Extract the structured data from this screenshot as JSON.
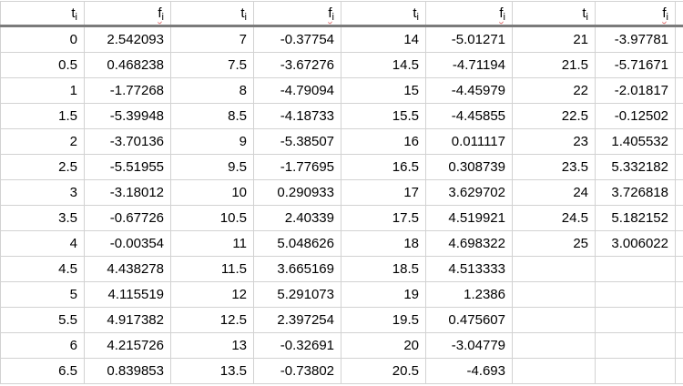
{
  "table": {
    "header": {
      "t_base": "t",
      "t_sub": "i",
      "f_base": "f",
      "f_sub": "i"
    },
    "layout": {
      "column_pairs": 4,
      "rows_per_column": 14
    }
  },
  "chart_data": {
    "type": "table",
    "columns": [
      "t_i",
      "f_i"
    ],
    "t": [
      0,
      0.5,
      1,
      1.5,
      2,
      2.5,
      3,
      3.5,
      4,
      4.5,
      5,
      5.5,
      6,
      6.5,
      7,
      7.5,
      8,
      8.5,
      9,
      9.5,
      10,
      10.5,
      11,
      11.5,
      12,
      12.5,
      13,
      13.5,
      14,
      14.5,
      15,
      15.5,
      16,
      16.5,
      17,
      17.5,
      18,
      18.5,
      19,
      19.5,
      20,
      20.5,
      21,
      21.5,
      22,
      22.5,
      23,
      23.5,
      24,
      24.5,
      25
    ],
    "f": [
      2.542093,
      0.468238,
      -1.77268,
      -5.39948,
      -3.70136,
      -5.51955,
      -3.18012,
      -0.67726,
      -0.00354,
      4.438278,
      4.115519,
      4.917382,
      4.215726,
      0.839853,
      -0.37754,
      -3.67276,
      -4.79094,
      -4.18733,
      -5.38507,
      -1.77695,
      0.290933,
      2.40339,
      5.048626,
      3.665169,
      5.291073,
      2.397254,
      -0.32691,
      -0.73802,
      -5.01271,
      -4.71194,
      -4.45979,
      -4.45855,
      0.011117,
      0.308739,
      3.629702,
      4.519921,
      4.698322,
      4.513333,
      1.2386,
      0.475607,
      -3.04779,
      -4.693,
      -3.97781,
      -5.71671,
      -2.01817,
      -0.12502,
      1.405532,
      5.332182,
      3.726818,
      5.182152,
      3.006022
    ]
  },
  "colors": {
    "grid_line": "#d2d2d2",
    "header_rule": "#7b7b7b",
    "text": "#000000",
    "spellcheck_wavy_underline": "#e06c6c",
    "background": "#ffffff"
  }
}
